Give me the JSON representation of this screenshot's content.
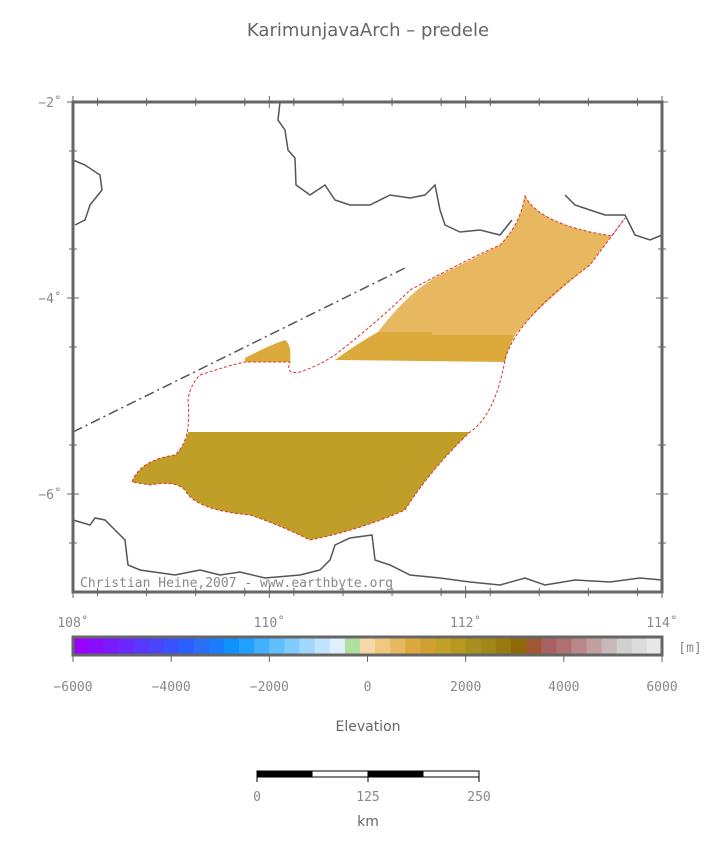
{
  "title": "KarimunjavaArch – predele",
  "map": {
    "xticks": [
      "108˚",
      "110˚",
      "112˚",
      "114˚"
    ],
    "yticks": [
      "−2˚",
      "−4˚",
      "−6˚"
    ],
    "credit": "Christian Heine,2007 - www.earthbyte.org"
  },
  "colorbar": {
    "ticks": [
      "−6000",
      "−4000",
      "−2000",
      "0",
      "2000",
      "4000",
      "6000"
    ],
    "unit": "[m]",
    "label": "Elevation"
  },
  "scalebar": {
    "ticks": [
      "0",
      "125",
      "250"
    ],
    "unit": "km"
  }
}
